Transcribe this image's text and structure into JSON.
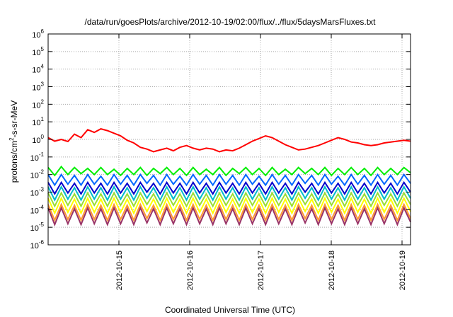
{
  "chart_data": {
    "type": "line",
    "title": "/data/run/goesPlots/archive/2012-10-19/02:00/flux/../flux/5daysMarsFluxes.txt",
    "xlabel": "Coordinated Universal Time (UTC)",
    "ylabel": "protons/cm²-s-sr-MeV",
    "yscale": "log",
    "ylim": [
      1e-06,
      1000000.0
    ],
    "xlim": [
      14.0,
      19.12
    ],
    "grid": true,
    "yticks": [
      {
        "mant": "10",
        "exp": "-6"
      },
      {
        "mant": "10",
        "exp": "-5"
      },
      {
        "mant": "10",
        "exp": "-4"
      },
      {
        "mant": "10",
        "exp": "-3"
      },
      {
        "mant": "10",
        "exp": "-2"
      },
      {
        "mant": "10",
        "exp": "-1"
      },
      {
        "mant": "10",
        "exp": "0"
      },
      {
        "mant": "10",
        "exp": "1"
      },
      {
        "mant": "10",
        "exp": "2"
      },
      {
        "mant": "10",
        "exp": "3"
      },
      {
        "mant": "10",
        "exp": "4"
      },
      {
        "mant": "10",
        "exp": "5"
      },
      {
        "mant": "10",
        "exp": "6"
      }
    ],
    "xticks": [
      {
        "value": 15,
        "label": "2012-10-15"
      },
      {
        "value": 16,
        "label": "2012-10-16"
      },
      {
        "value": 17,
        "label": "2012-10-17"
      },
      {
        "value": 18,
        "label": "2012-10-18"
      },
      {
        "value": 19,
        "label": "2012-10-19"
      }
    ],
    "series": [
      {
        "color": "#ff0000",
        "log10_y": [
          0.1,
          -0.1,
          0.0,
          -0.12,
          0.3,
          0.1,
          0.55,
          0.4,
          0.6,
          0.5,
          0.35,
          0.2,
          -0.05,
          -0.2,
          -0.45,
          -0.55,
          -0.7,
          -0.6,
          -0.5,
          -0.65,
          -0.45,
          -0.35,
          -0.5,
          -0.6,
          -0.5,
          -0.55,
          -0.7,
          -0.6,
          -0.65,
          -0.5,
          -0.3,
          -0.1,
          0.05,
          0.2,
          0.1,
          -0.1,
          -0.3,
          -0.45,
          -0.6,
          -0.55,
          -0.45,
          -0.35,
          -0.2,
          -0.05,
          0.1,
          0.0,
          -0.15,
          -0.2,
          -0.3,
          -0.35,
          -0.3,
          -0.2,
          -0.15,
          -0.1,
          -0.05,
          -0.1
        ]
      },
      {
        "color": "#00ee00",
        "log10_y": [
          -1.6,
          -2.05,
          -1.55,
          -2.0,
          -1.6,
          -1.95,
          -1.65,
          -2.0,
          -1.6,
          -2.0,
          -1.7,
          -2.05,
          -1.65,
          -2.0,
          -1.6,
          -2.05,
          -1.65,
          -1.95,
          -1.6,
          -2.0,
          -1.65,
          -2.05,
          -1.6,
          -2.0,
          -1.7,
          -2.0,
          -1.6,
          -2.05,
          -1.65,
          -1.95,
          -1.6,
          -2.0,
          -1.65,
          -2.05,
          -1.6,
          -2.0,
          -1.7,
          -2.0,
          -1.6,
          -1.95,
          -1.65,
          -2.0,
          -1.6,
          -2.05,
          -1.65,
          -2.0,
          -1.6,
          -2.0,
          -1.65,
          -2.05,
          -1.6,
          -2.0,
          -1.65,
          -2.0,
          -1.6,
          -1.9
        ]
      },
      {
        "color": "#0066ff",
        "log10_y": [
          -2.0,
          -2.6,
          -2.0,
          -2.55,
          -2.05,
          -2.6,
          -2.0,
          -2.55,
          -2.1,
          -2.6,
          -2.0,
          -2.55,
          -2.05,
          -2.6,
          -2.0,
          -2.5,
          -2.05,
          -2.6,
          -2.0,
          -2.55,
          -2.1,
          -2.6,
          -2.0,
          -2.55,
          -2.05,
          -2.6,
          -2.0,
          -2.55,
          -2.05,
          -2.6,
          -2.0,
          -2.55,
          -2.1,
          -2.6,
          -2.0,
          -2.55,
          -2.05,
          -2.6,
          -2.0,
          -2.5,
          -2.05,
          -2.6,
          -2.0,
          -2.55,
          -2.1,
          -2.6,
          -2.0,
          -2.55,
          -2.05,
          -2.6,
          -2.0,
          -2.55,
          -2.05,
          -2.6,
          -2.0,
          -2.5
        ]
      },
      {
        "color": "#0000cc",
        "log10_y": [
          -2.45,
          -3.1,
          -2.45,
          -3.05,
          -2.5,
          -3.1,
          -2.45,
          -3.05,
          -2.5,
          -3.1,
          -2.45,
          -3.05,
          -2.5,
          -3.1,
          -2.45,
          -3.0,
          -2.5,
          -3.1,
          -2.45,
          -3.05,
          -2.5,
          -3.1,
          -2.45,
          -3.05,
          -2.5,
          -3.1,
          -2.45,
          -3.05,
          -2.5,
          -3.1,
          -2.45,
          -3.05,
          -2.5,
          -3.1,
          -2.45,
          -3.05,
          -2.5,
          -3.1,
          -2.45,
          -3.0,
          -2.5,
          -3.1,
          -2.45,
          -3.05,
          -2.5,
          -3.1,
          -2.45,
          -3.05,
          -2.5,
          -3.1,
          -2.45,
          -3.05,
          -2.5,
          -3.1,
          -2.45,
          -3.0
        ]
      },
      {
        "color": "#00bbcc",
        "log10_y": [
          -2.7,
          -3.45,
          -2.7,
          -3.4,
          -2.75,
          -3.45,
          -2.7,
          -3.4,
          -2.75,
          -3.45,
          -2.7,
          -3.4,
          -2.75,
          -3.45,
          -2.7,
          -3.35,
          -2.75,
          -3.45,
          -2.7,
          -3.4,
          -2.75,
          -3.45,
          -2.7,
          -3.4,
          -2.75,
          -3.45,
          -2.7,
          -3.4,
          -2.75,
          -3.45,
          -2.7,
          -3.4,
          -2.75,
          -3.45,
          -2.7,
          -3.4,
          -2.75,
          -3.45,
          -2.7,
          -3.35,
          -2.75,
          -3.45,
          -2.7,
          -3.4,
          -2.75,
          -3.45,
          -2.7,
          -3.4,
          -2.75,
          -3.45,
          -2.7,
          -3.4,
          -2.75,
          -3.45,
          -2.7,
          -3.35
        ]
      },
      {
        "color": "#99dd33",
        "log10_y": [
          -3.05,
          -3.8,
          -3.05,
          -3.75,
          -3.1,
          -3.8,
          -3.05,
          -3.75,
          -3.1,
          -3.8,
          -3.05,
          -3.75,
          -3.1,
          -3.8,
          -3.05,
          -3.7,
          -3.1,
          -3.8,
          -3.05,
          -3.75,
          -3.1,
          -3.8,
          -3.05,
          -3.75,
          -3.1,
          -3.8,
          -3.05,
          -3.75,
          -3.1,
          -3.8,
          -3.05,
          -3.75,
          -3.1,
          -3.8,
          -3.05,
          -3.75,
          -3.1,
          -3.8,
          -3.05,
          -3.7,
          -3.1,
          -3.8,
          -3.05,
          -3.75,
          -3.1,
          -3.8,
          -3.05,
          -3.75,
          -3.1,
          -3.8,
          -3.05,
          -3.75,
          -3.1,
          -3.8,
          -3.05,
          -3.7
        ]
      },
      {
        "color": "#ffff00",
        "log10_y": [
          -3.35,
          -4.2,
          -3.35,
          -4.15,
          -3.4,
          -4.2,
          -3.35,
          -4.15,
          -3.4,
          -4.2,
          -3.35,
          -4.15,
          -3.4,
          -4.2,
          -3.35,
          -4.1,
          -3.4,
          -4.2,
          -3.35,
          -4.15,
          -3.4,
          -4.2,
          -3.35,
          -4.15,
          -3.4,
          -4.2,
          -3.35,
          -4.15,
          -3.4,
          -4.2,
          -3.35,
          -4.15,
          -3.4,
          -4.2,
          -3.35,
          -4.15,
          -3.4,
          -4.2,
          -3.35,
          -4.1,
          -3.4,
          -4.2,
          -3.35,
          -4.15,
          -3.4,
          -4.2,
          -3.35,
          -4.15,
          -3.4,
          -4.2,
          -3.35,
          -4.15,
          -3.4,
          -4.2,
          -3.35,
          -4.1
        ]
      },
      {
        "color": "#ff9933",
        "log10_y": [
          -3.7,
          -4.6,
          -3.7,
          -4.55,
          -3.75,
          -4.6,
          -3.7,
          -4.55,
          -3.75,
          -4.6,
          -3.7,
          -4.55,
          -3.75,
          -4.6,
          -3.7,
          -4.5,
          -3.75,
          -4.6,
          -3.7,
          -4.55,
          -3.75,
          -4.6,
          -3.7,
          -4.55,
          -3.75,
          -4.6,
          -3.7,
          -4.55,
          -3.75,
          -4.6,
          -3.7,
          -4.55,
          -3.75,
          -4.6,
          -3.7,
          -4.55,
          -3.75,
          -4.6,
          -3.7,
          -4.5,
          -3.75,
          -4.6,
          -3.7,
          -4.55,
          -3.75,
          -4.6,
          -3.7,
          -4.55,
          -3.75,
          -4.6,
          -3.7,
          -4.55,
          -3.75,
          -4.6,
          -3.7,
          -4.5
        ]
      },
      {
        "color": "#993366",
        "log10_y": [
          -3.9,
          -4.85,
          -3.9,
          -4.8,
          -3.95,
          -4.85,
          -3.9,
          -4.8,
          -3.95,
          -4.85,
          -3.9,
          -4.8,
          -3.95,
          -4.85,
          -3.9,
          -4.75,
          -3.95,
          -4.85,
          -3.9,
          -4.8,
          -3.95,
          -4.85,
          -3.9,
          -4.8,
          -3.95,
          -4.85,
          -3.9,
          -4.8,
          -3.95,
          -4.85,
          -3.9,
          -4.8,
          -3.95,
          -4.85,
          -3.9,
          -4.8,
          -3.95,
          -4.85,
          -3.9,
          -4.75,
          -3.95,
          -4.85,
          -3.9,
          -4.8,
          -3.95,
          -4.85,
          -3.9,
          -4.8,
          -3.95,
          -4.85,
          -3.9,
          -4.8,
          -3.95,
          -4.85,
          -3.9,
          -4.7
        ]
      }
    ]
  }
}
